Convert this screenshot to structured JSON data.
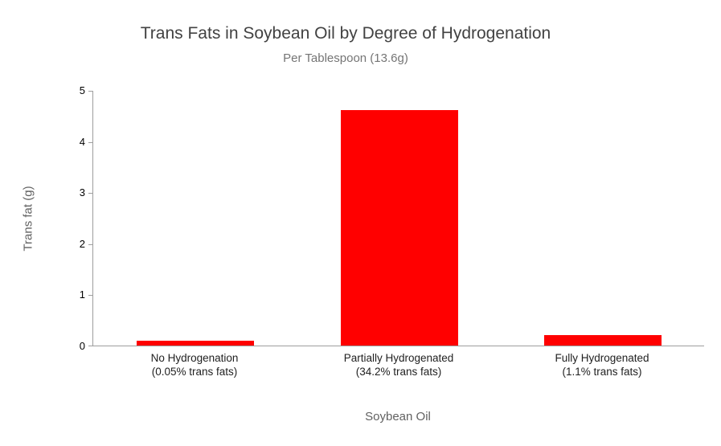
{
  "chart_data": {
    "type": "bar",
    "title": "Trans Fats in Soybean Oil by Degree of Hydrogenation",
    "subtitle": "Per Tablespoon (13.6g)",
    "categories": [
      "No Hydrogenation",
      "Partially Hydrogenated",
      "Fully Hydrogenated"
    ],
    "category_sublabels": [
      "(0.05% trans fats)",
      "(34.2% trans fats)",
      "(1.1% trans fats)"
    ],
    "values": [
      0.1,
      4.6,
      0.2
    ],
    "xlabel": "Soybean Oil",
    "ylabel": "Trans fat (g)",
    "ylim": [
      0,
      5
    ],
    "yticks": [
      0,
      1,
      2,
      3,
      4,
      5
    ],
    "bar_color": "#ff0000",
    "axis_color": "#9e9e9e",
    "grid": false,
    "legend": "none"
  }
}
